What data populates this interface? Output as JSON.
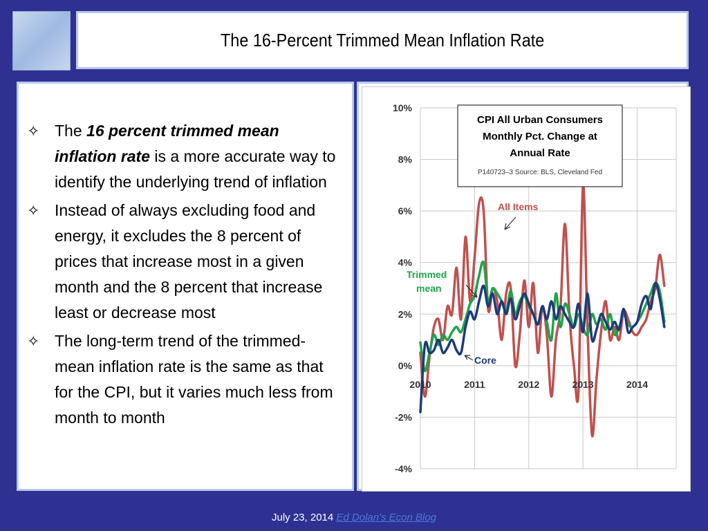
{
  "slide": {
    "title": "The 16-Percent Trimmed Mean Inflation Rate"
  },
  "bullets": [
    {
      "before": "The ",
      "bold": "16 percent trimmed mean inflation rate",
      "after": " is a more accurate way to identify the underlying trend of inflation"
    },
    {
      "before": "Instead of always excluding food and energy, it excludes the 8 percent of prices that increase most in a given month and the 8 percent that increase least or decrease most",
      "bold": "",
      "after": ""
    },
    {
      "before": "The long-term trend of the trimmed-mean inflation rate is the same as that for the CPI, but it varies much less from month to month",
      "bold": "",
      "after": ""
    }
  ],
  "footer": {
    "date": "July 23, 2014",
    "link_text": "Ed Dolan's Econ Blog"
  },
  "chart_data": {
    "type": "line",
    "title_lines": [
      "CPI All Urban Consumers",
      "Monthly Pct. Change at",
      "Annual Rate"
    ],
    "source": "P140723–3 Source: BLS, Cleveland Fed",
    "ylim": [
      -4,
      10
    ],
    "yticks": [
      -4,
      -2,
      0,
      2,
      4,
      6,
      8,
      10
    ],
    "ytick_labels": [
      "-4%",
      "-2%",
      "0%",
      "2%",
      "4%",
      "6%",
      "8%",
      "10%"
    ],
    "xlim": [
      2010,
      2014.72
    ],
    "xticks": [
      2010,
      2011,
      2012,
      2013,
      2014
    ],
    "xtick_labels": [
      "2010",
      "2011",
      "2012",
      "2013",
      "2014"
    ],
    "grid": true,
    "series": [
      {
        "name": "All Items",
        "color": "#c0504d",
        "x": [
          2010.0,
          2010.083,
          2010.167,
          2010.25,
          2010.333,
          2010.417,
          2010.5,
          2010.583,
          2010.667,
          2010.75,
          2010.833,
          2010.917,
          2011.0,
          2011.083,
          2011.167,
          2011.25,
          2011.333,
          2011.417,
          2011.5,
          2011.583,
          2011.667,
          2011.75,
          2011.833,
          2011.917,
          2012.0,
          2012.083,
          2012.167,
          2012.25,
          2012.333,
          2012.417,
          2012.5,
          2012.583,
          2012.667,
          2012.75,
          2012.833,
          2012.917,
          2013.0,
          2013.083,
          2013.167,
          2013.25,
          2013.333,
          2013.417,
          2013.5,
          2013.583,
          2013.667,
          2013.75,
          2013.833,
          2013.917,
          2014.0,
          2014.083,
          2014.167,
          2014.25,
          2014.333,
          2014.417,
          2014.5
        ],
        "y": [
          0.5,
          -1.2,
          0.3,
          1.5,
          1.8,
          1.0,
          2.3,
          2.0,
          3.8,
          1.8,
          5.0,
          2.5,
          4.2,
          6.3,
          6.0,
          2.2,
          3.0,
          2.5,
          1.0,
          2.8,
          3.0,
          0.0,
          1.2,
          3.3,
          1.5,
          3.2,
          0.5,
          2.3,
          1.2,
          -1.2,
          1.0,
          2.2,
          5.5,
          2.0,
          0.0,
          -1.0,
          7.0,
          1.5,
          -2.7,
          -0.5,
          1.3,
          2.5,
          1.0,
          1.5,
          1.0,
          2.1,
          1.8,
          1.3,
          1.2,
          1.5,
          1.8,
          2.5,
          3.0,
          4.3,
          3.1
        ]
      },
      {
        "name": "Trimmed mean",
        "color": "#1fa34a",
        "x": [
          2010.0,
          2010.083,
          2010.167,
          2010.25,
          2010.333,
          2010.417,
          2010.5,
          2010.583,
          2010.667,
          2010.75,
          2010.833,
          2010.917,
          2011.0,
          2011.083,
          2011.167,
          2011.25,
          2011.333,
          2011.417,
          2011.5,
          2011.583,
          2011.667,
          2011.75,
          2011.833,
          2011.917,
          2012.0,
          2012.083,
          2012.167,
          2012.25,
          2012.333,
          2012.417,
          2012.5,
          2012.583,
          2012.667,
          2012.75,
          2012.833,
          2012.917,
          2013.0,
          2013.083,
          2013.167,
          2013.25,
          2013.333,
          2013.417,
          2013.5,
          2013.583,
          2013.667,
          2013.75,
          2013.833,
          2013.917,
          2014.0,
          2014.083,
          2014.167,
          2014.25,
          2014.333,
          2014.417,
          2014.5
        ],
        "y": [
          0.9,
          -0.2,
          0.5,
          1.2,
          0.8,
          1.2,
          1.0,
          1.3,
          1.5,
          1.3,
          1.8,
          2.4,
          2.7,
          3.5,
          4.0,
          2.5,
          3.0,
          2.8,
          2.5,
          2.1,
          2.9,
          2.0,
          2.5,
          2.7,
          2.3,
          2.0,
          1.6,
          2.2,
          1.7,
          1.0,
          2.8,
          1.5,
          2.4,
          2.0,
          1.5,
          2.0,
          1.5,
          1.2,
          2.0,
          1.6,
          1.8,
          1.4,
          2.0,
          1.2,
          1.5,
          2.0,
          1.6,
          1.5,
          1.7,
          2.0,
          2.4,
          2.8,
          3.2,
          2.9,
          1.7
        ]
      },
      {
        "name": "Core",
        "color": "#1f3a78",
        "x": [
          2010.0,
          2010.083,
          2010.167,
          2010.25,
          2010.333,
          2010.417,
          2010.5,
          2010.583,
          2010.667,
          2010.75,
          2010.833,
          2010.917,
          2011.0,
          2011.083,
          2011.167,
          2011.25,
          2011.333,
          2011.417,
          2011.5,
          2011.583,
          2011.667,
          2011.75,
          2011.833,
          2011.917,
          2012.0,
          2012.083,
          2012.167,
          2012.25,
          2012.333,
          2012.417,
          2012.5,
          2012.583,
          2012.667,
          2012.75,
          2012.833,
          2012.917,
          2013.0,
          2013.083,
          2013.167,
          2013.25,
          2013.333,
          2013.417,
          2013.5,
          2013.583,
          2013.667,
          2013.75,
          2013.833,
          2013.917,
          2014.0,
          2014.083,
          2014.167,
          2014.25,
          2014.333,
          2014.417,
          2014.5
        ],
        "y": [
          -1.8,
          0.8,
          0.5,
          0.6,
          1.0,
          0.5,
          0.7,
          1.0,
          0.6,
          0.5,
          1.5,
          2.1,
          1.8,
          2.5,
          3.1,
          2.3,
          2.8,
          2.0,
          2.5,
          2.0,
          2.6,
          1.8,
          2.3,
          2.8,
          2.4,
          2.0,
          1.6,
          2.3,
          1.8,
          2.5,
          1.8,
          2.3,
          2.0,
          1.7,
          1.5,
          2.4,
          1.3,
          2.8,
          1.0,
          1.4,
          2.0,
          1.7,
          1.4,
          1.7,
          1.4,
          2.2,
          1.3,
          1.5,
          1.7,
          2.4,
          2.7,
          2.2,
          3.2,
          2.6,
          1.5
        ]
      }
    ],
    "annotations": [
      {
        "text": "All Items",
        "color": "#c0504d"
      },
      {
        "text": "Trimmed mean",
        "color": "#1fa34a"
      },
      {
        "text": "Core",
        "color": "#1f3a78"
      }
    ]
  }
}
